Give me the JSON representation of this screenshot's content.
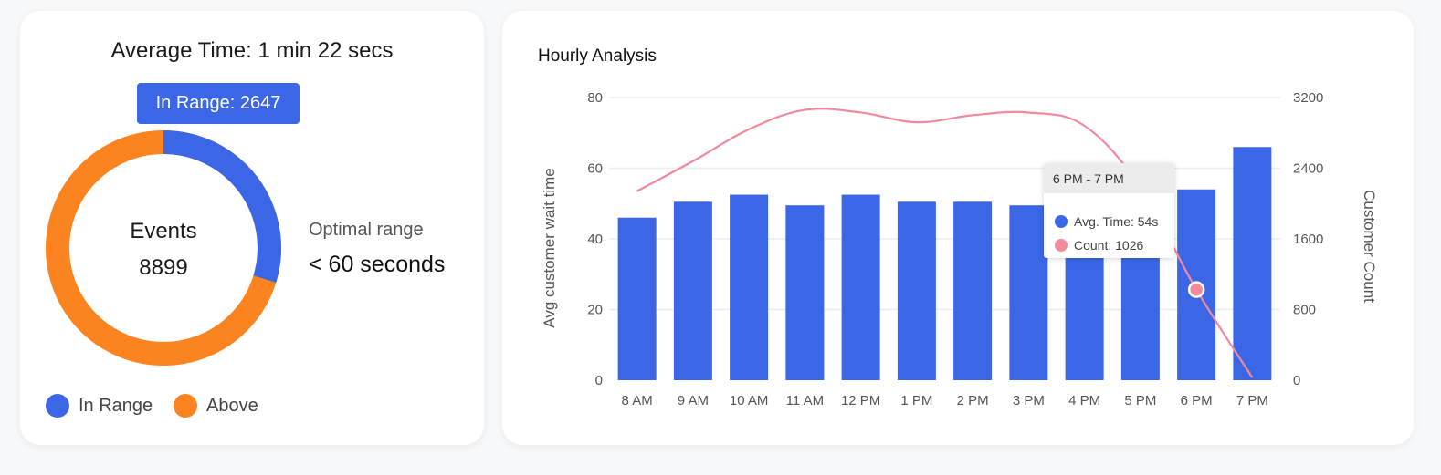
{
  "summary": {
    "title": "Average Time: 1 min 22 secs",
    "pill": "In Range: 2647",
    "center_title": "Events",
    "center_value": "8899",
    "optimal_label": "Optimal range",
    "optimal_value": "< 60 seconds",
    "legend": [
      {
        "label": "In Range",
        "color": "#3b67e6"
      },
      {
        "label": "Above",
        "color": "#fb8420"
      }
    ]
  },
  "chart_data": [
    {
      "type": "pie",
      "title": "Events",
      "total": 8899,
      "slices": [
        {
          "label": "In Range",
          "value": 2647,
          "color": "#3b67e6"
        },
        {
          "label": "Above",
          "value": 6252,
          "color": "#fb8420"
        }
      ]
    },
    {
      "type": "bar",
      "title": "Hourly Analysis",
      "categories": [
        "8 AM",
        "9 AM",
        "10 AM",
        "11 AM",
        "12 PM",
        "1 PM",
        "2 PM",
        "3 PM",
        "4 PM",
        "5 PM",
        "6 PM",
        "7 PM"
      ],
      "series": [
        {
          "name": "Avg. Time",
          "kind": "bar",
          "axis": "left",
          "color": "#3b67e6",
          "values": [
            46,
            50.5,
            52.5,
            49.5,
            52.5,
            50.5,
            50.5,
            49.5,
            40,
            38,
            54,
            66
          ]
        },
        {
          "name": "Count",
          "kind": "line",
          "axis": "right",
          "color": "#f08a9c",
          "values": [
            2140,
            2480,
            2840,
            3060,
            3030,
            2920,
            3000,
            3030,
            2880,
            2180,
            1026,
            30
          ]
        }
      ],
      "xlabel": "",
      "ylabel": "Avg customer wait time",
      "y2label": "Customer Count",
      "ylim": [
        0,
        80
      ],
      "yticks": [
        "80",
        "60",
        "40",
        "20",
        "0"
      ],
      "y2lim": [
        0,
        3200
      ],
      "y2ticks": [
        "3200",
        "2400",
        "1600",
        "800",
        "0"
      ],
      "grid": true,
      "tooltip": {
        "title": "6 PM - 7 PM",
        "rows": [
          "Avg. Time: 54s",
          "Count: 1026"
        ],
        "category_index": 10
      }
    }
  ]
}
